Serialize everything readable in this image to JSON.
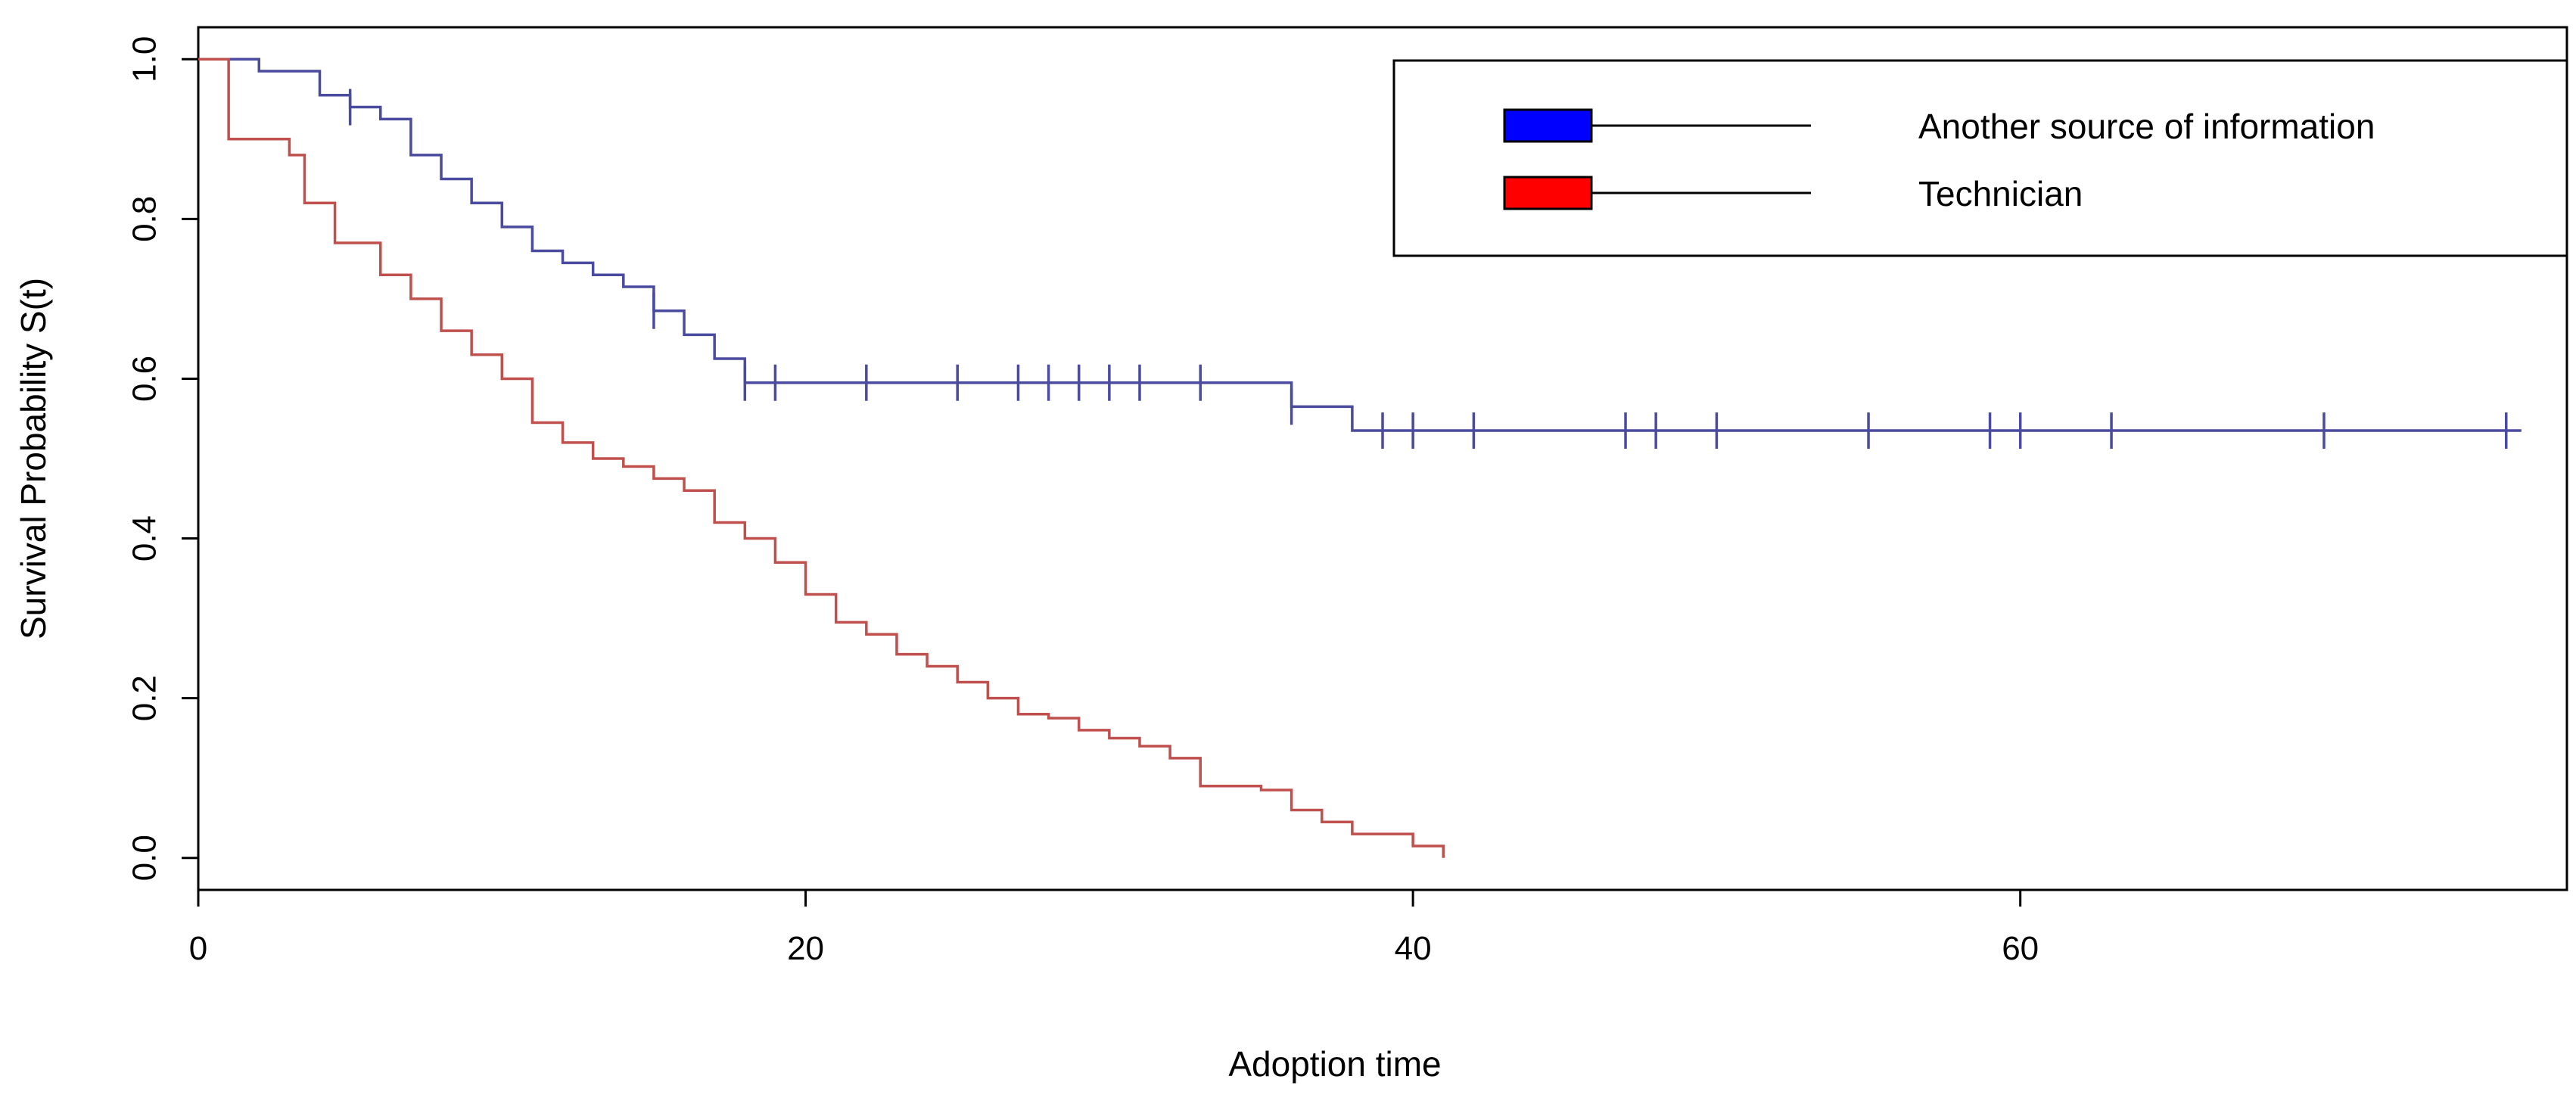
{
  "chart_data": {
    "type": "line",
    "subtype": "kaplan-meier survival curve",
    "title": "",
    "xlabel": "Adoption time",
    "ylabel": "Survival Probability S(t)",
    "xlim": [
      0,
      78
    ],
    "ylim": [
      -0.04,
      1.04
    ],
    "x_ticks": [
      0,
      20,
      40,
      60
    ],
    "x_tick_labels": [
      "0",
      "20",
      "40",
      "60"
    ],
    "y_ticks": [
      0,
      0.2,
      0.4,
      0.6,
      0.8,
      1
    ],
    "y_tick_labels": [
      "0.0",
      "0.2",
      "0.4",
      "0.6",
      "0.8",
      "1.0"
    ],
    "legend": {
      "position": "top-right",
      "entries": [
        {
          "label": "Another source of information",
          "color": "#0000ff"
        },
        {
          "label": "Technician",
          "color": "#ff0000"
        }
      ]
    },
    "series": [
      {
        "name": "Another source of information",
        "color": "#4a4a9e",
        "steps": [
          [
            0,
            1.0
          ],
          [
            2,
            0.985
          ],
          [
            4,
            0.955
          ],
          [
            5,
            0.94
          ],
          [
            6,
            0.925
          ],
          [
            7,
            0.88
          ],
          [
            8,
            0.85
          ],
          [
            9,
            0.82
          ],
          [
            10,
            0.79
          ],
          [
            11,
            0.76
          ],
          [
            12,
            0.745
          ],
          [
            13,
            0.73
          ],
          [
            14,
            0.715
          ],
          [
            15,
            0.685
          ],
          [
            16,
            0.655
          ],
          [
            17,
            0.625
          ],
          [
            18,
            0.595
          ],
          [
            36,
            0.565
          ],
          [
            38,
            0.535
          ],
          [
            76.5,
            0.535
          ]
        ],
        "censor_times": [
          5,
          15,
          18,
          19,
          22,
          25,
          27,
          28,
          29,
          30,
          31,
          33,
          36,
          39,
          40,
          42,
          47,
          48,
          50,
          55,
          59,
          60,
          63,
          70,
          76
        ]
      },
      {
        "name": "Technician",
        "color": "#c0504d",
        "steps": [
          [
            0,
            1.0
          ],
          [
            1,
            0.9
          ],
          [
            2,
            0.9
          ],
          [
            3,
            0.88
          ],
          [
            3.5,
            0.82
          ],
          [
            4,
            0.82
          ],
          [
            4.5,
            0.77
          ],
          [
            5,
            0.77
          ],
          [
            6,
            0.73
          ],
          [
            7,
            0.7
          ],
          [
            8,
            0.66
          ],
          [
            9,
            0.63
          ],
          [
            10,
            0.6
          ],
          [
            11,
            0.545
          ],
          [
            12,
            0.52
          ],
          [
            13,
            0.5
          ],
          [
            14,
            0.49
          ],
          [
            15,
            0.475
          ],
          [
            16,
            0.46
          ],
          [
            17,
            0.42
          ],
          [
            18,
            0.4
          ],
          [
            19,
            0.37
          ],
          [
            20,
            0.33
          ],
          [
            21,
            0.295
          ],
          [
            22,
            0.28
          ],
          [
            23,
            0.255
          ],
          [
            24,
            0.24
          ],
          [
            25,
            0.22
          ],
          [
            26,
            0.2
          ],
          [
            27,
            0.18
          ],
          [
            28,
            0.175
          ],
          [
            29,
            0.16
          ],
          [
            30,
            0.15
          ],
          [
            31,
            0.14
          ],
          [
            32,
            0.125
          ],
          [
            33,
            0.09
          ],
          [
            35,
            0.085
          ],
          [
            36,
            0.06
          ],
          [
            37,
            0.045
          ],
          [
            38,
            0.03
          ],
          [
            39,
            0.03
          ],
          [
            40,
            0.015
          ],
          [
            41,
            0.0
          ]
        ],
        "censor_times": []
      }
    ]
  }
}
